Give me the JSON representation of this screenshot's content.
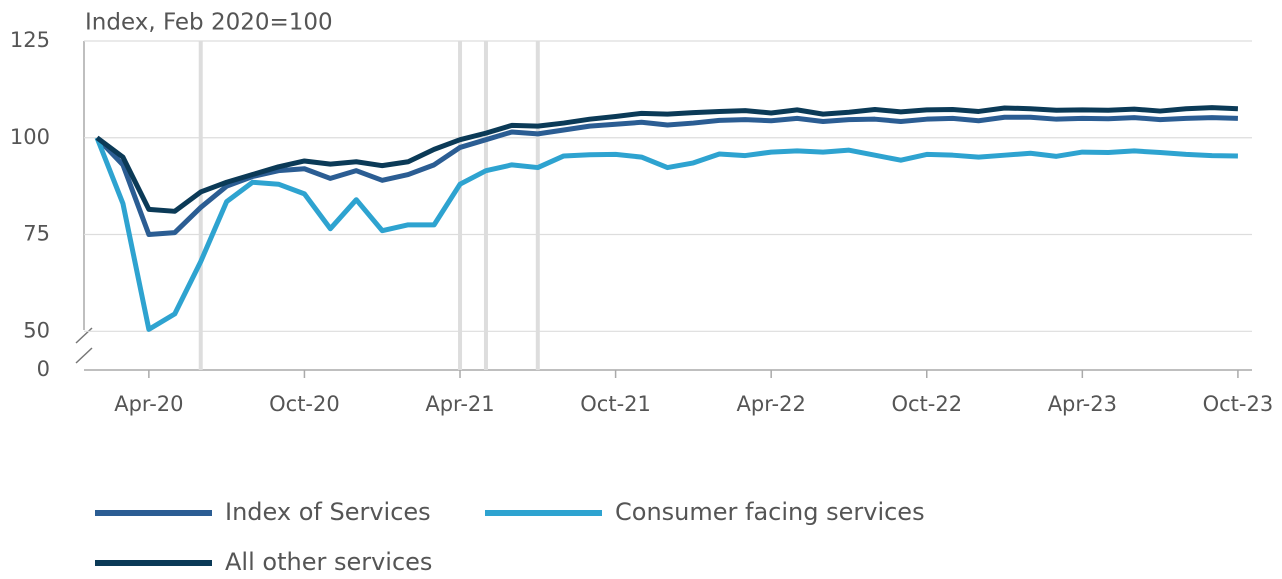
{
  "chart_data": {
    "type": "line",
    "axis_title": "Index, Feb 2020=100",
    "categories": [
      null,
      null,
      "Apr-20",
      null,
      null,
      null,
      null,
      null,
      "Oct-20",
      null,
      null,
      null,
      null,
      null,
      "Apr-21",
      null,
      null,
      null,
      null,
      null,
      "Oct-21",
      null,
      null,
      null,
      null,
      null,
      "Apr-22",
      null,
      null,
      null,
      null,
      null,
      "Oct-22",
      null,
      null,
      null,
      null,
      null,
      "Apr-23",
      null,
      null,
      null,
      null,
      null,
      "Oct-23"
    ],
    "series": [
      {
        "name": "Index of Services",
        "color": "#2b5d93",
        "values": [
          100,
          93,
          75,
          75.5,
          82,
          87.5,
          90,
          91.5,
          92,
          89.5,
          91.5,
          89,
          90.5,
          93,
          97.5,
          99.5,
          101.5,
          101,
          102,
          103,
          103.5,
          104,
          103.3,
          103.8,
          104.5,
          104.7,
          104.4,
          105,
          104.2,
          104.7,
          104.8,
          104.2,
          104.8,
          105,
          104.4,
          105.3,
          105.3,
          104.8,
          105,
          104.9,
          105.2,
          104.7,
          105,
          105.2,
          105
        ]
      },
      {
        "name": "Consumer facing services",
        "color": "#2ea3d0",
        "values": [
          100,
          83,
          50.5,
          54.5,
          68,
          83.5,
          88.5,
          88,
          85.5,
          76.5,
          84,
          76,
          77.5,
          77.5,
          88,
          91.5,
          93,
          92.3,
          95.3,
          95.6,
          95.7,
          95,
          92.3,
          93.5,
          95.8,
          95.4,
          96.3,
          96.6,
          96.3,
          96.8,
          95.5,
          94.2,
          95.7,
          95.5,
          95,
          95.5,
          96,
          95.2,
          96.3,
          96.2,
          96.6,
          96.2,
          95.7,
          95.4,
          95.3
        ]
      },
      {
        "name": "All other services",
        "color": "#0b3a57",
        "values": [
          100,
          95,
          81.5,
          81,
          86,
          88.5,
          90.5,
          92.5,
          94,
          93.2,
          93.8,
          92.8,
          93.8,
          97,
          99.5,
          101.2,
          103.2,
          103,
          103.8,
          104.8,
          105.5,
          106.3,
          106.1,
          106.5,
          106.8,
          107,
          106.4,
          107.2,
          106.1,
          106.6,
          107.3,
          106.7,
          107.2,
          107.3,
          106.8,
          107.7,
          107.5,
          107.1,
          107.2,
          107.1,
          107.4,
          106.9,
          107.5,
          107.8,
          107.5
        ]
      }
    ],
    "ylim": [
      40,
      125
    ],
    "yticks": [
      50,
      75,
      100,
      125
    ],
    "axis_break_label": "0",
    "vertical_lines": [
      4,
      14,
      15,
      17
    ],
    "grid": true
  }
}
